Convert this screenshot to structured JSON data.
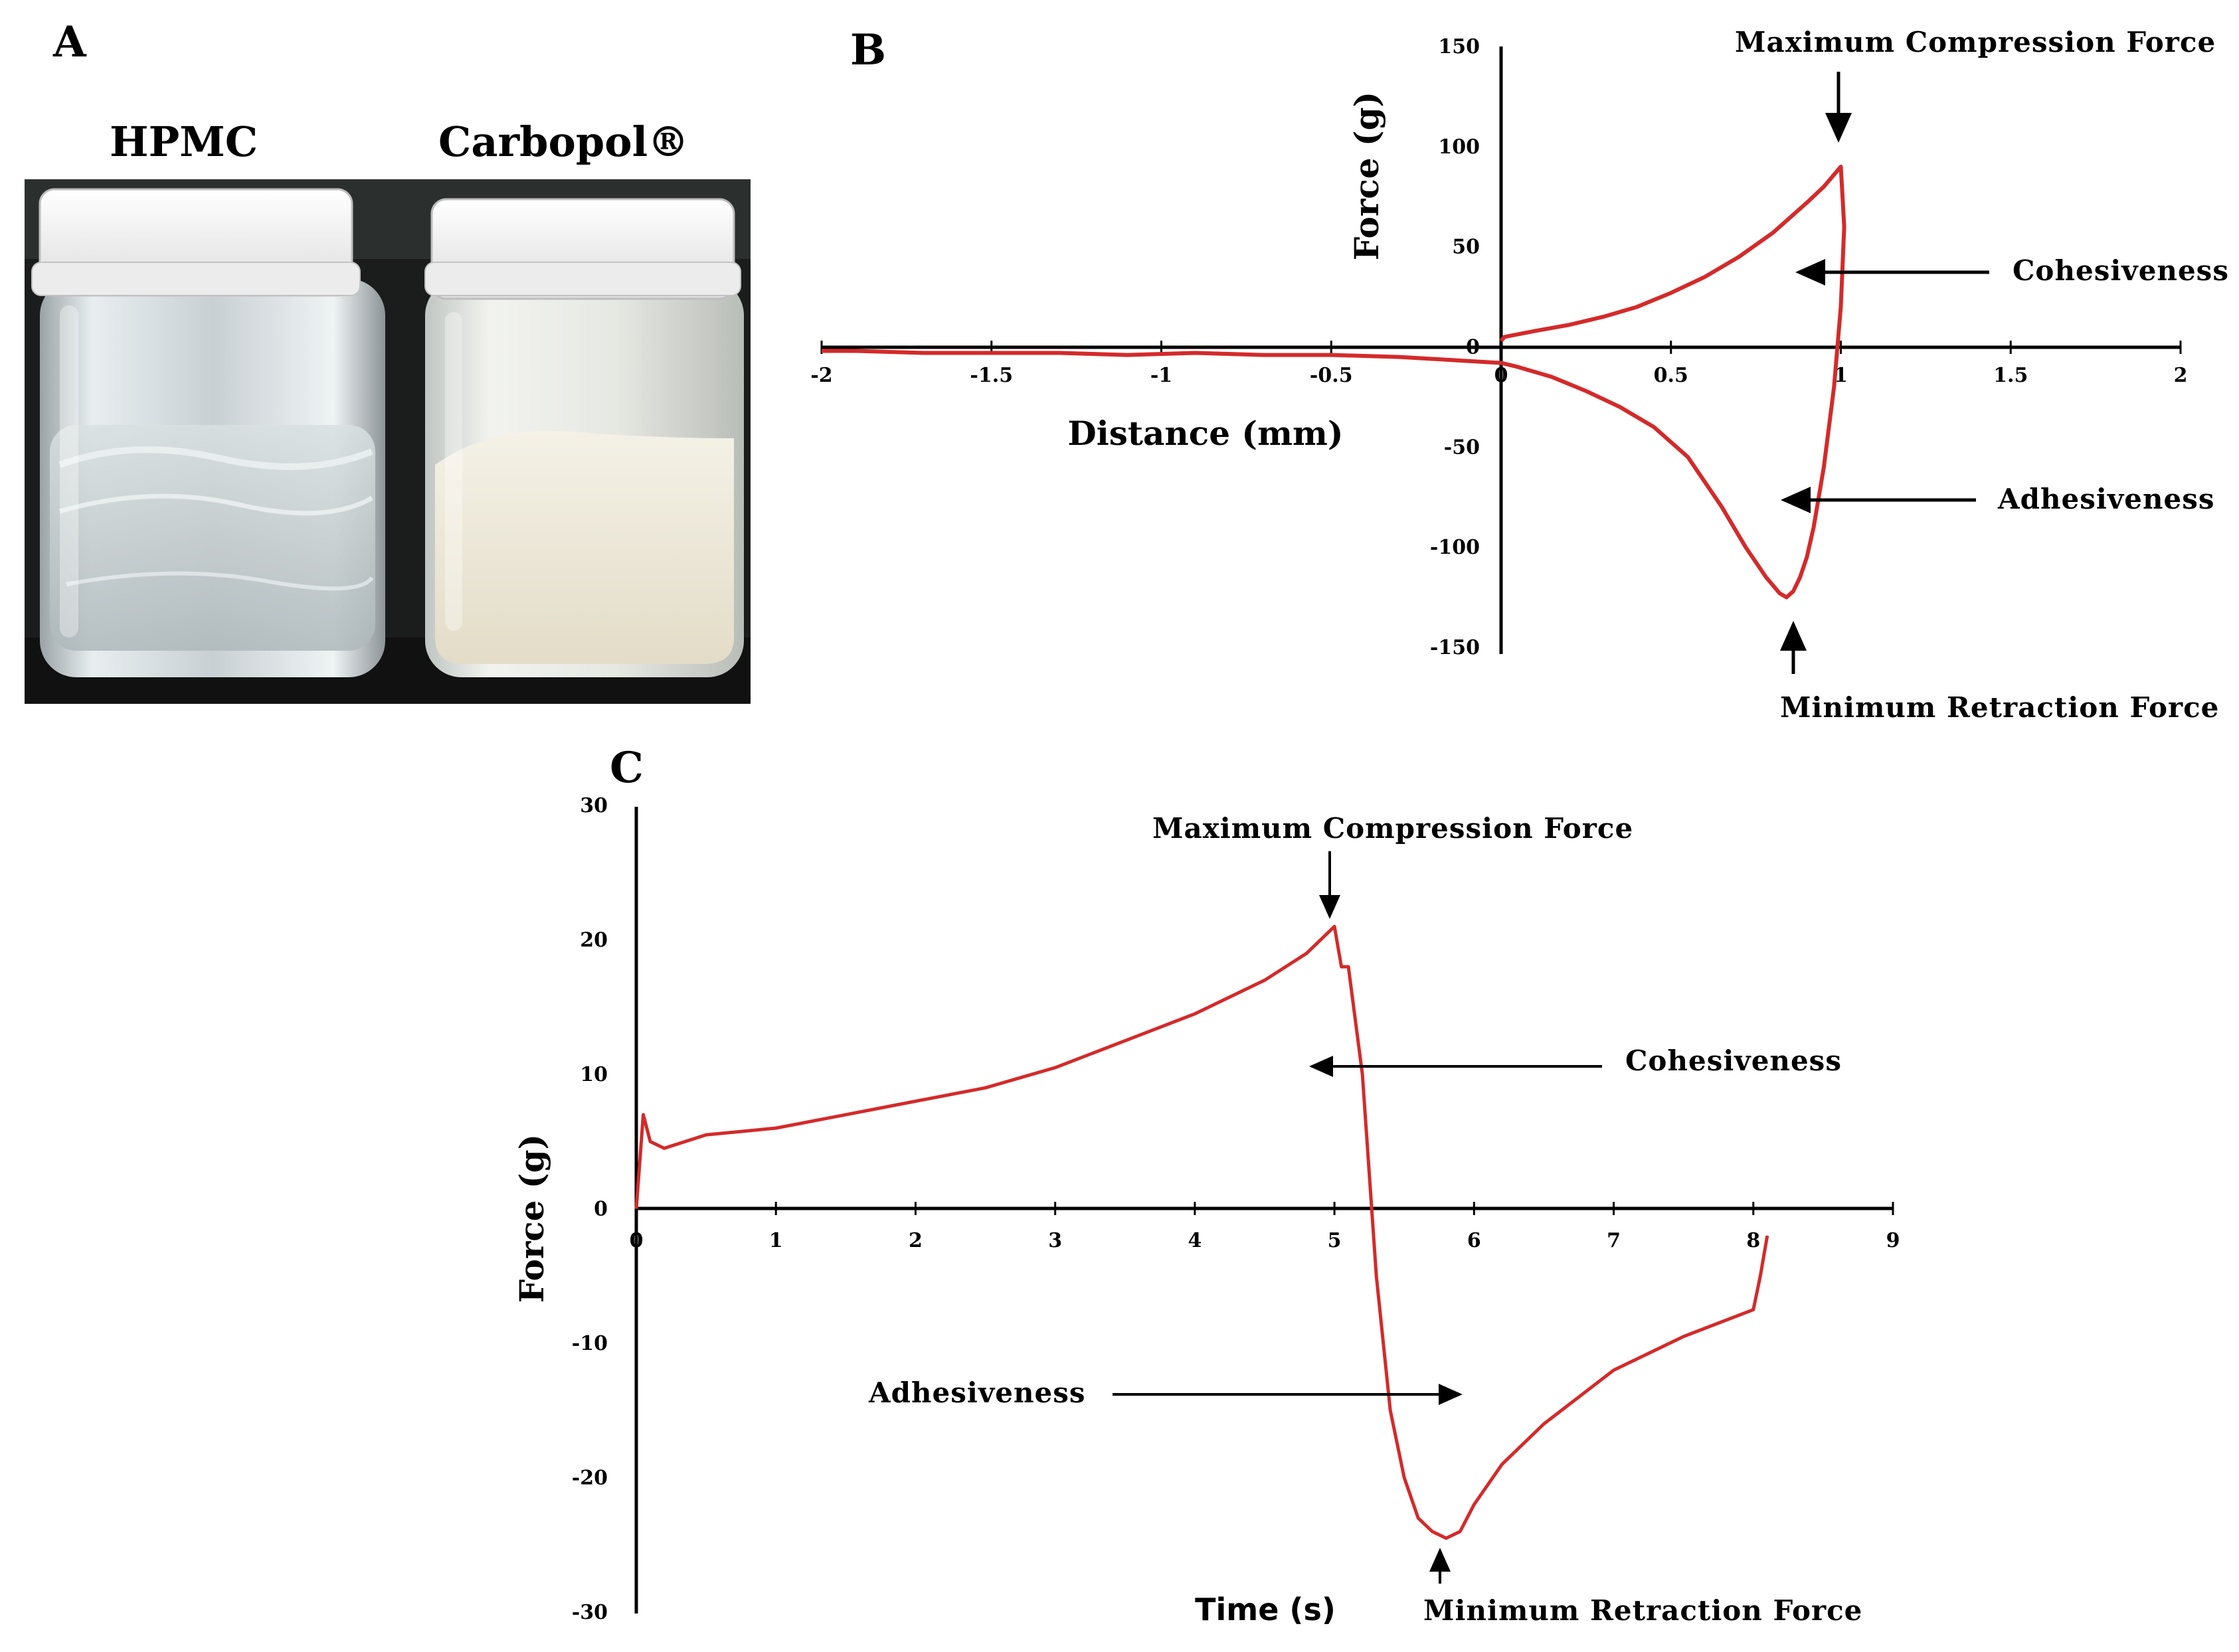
{
  "panel_a": {
    "letter": "A",
    "jars": [
      {
        "label": "HPMC"
      },
      {
        "label": "Carbopol®"
      }
    ]
  },
  "chart_data": [
    {
      "panel": "B",
      "type": "line",
      "xlabel": "Distance (mm)",
      "ylabel": "Force (g)",
      "xlim": [
        -2,
        2
      ],
      "ylim": [
        -150,
        150
      ],
      "xticks": [
        -2,
        -1.5,
        -1,
        -0.5,
        0,
        0.5,
        1,
        1.5,
        2
      ],
      "yticks": [
        150,
        100,
        50,
        0,
        -50,
        -100,
        -150
      ],
      "xtick_labels": [
        "-2",
        "-1.5",
        "-1",
        "-0.5",
        "0",
        "0.5",
        "1",
        "1.5",
        "2"
      ],
      "ytick_labels": [
        "150",
        "100",
        "50",
        "0",
        "-50",
        "-100",
        "-150"
      ],
      "grid": false,
      "line_color": "#d42a2a",
      "series": [
        {
          "x": [
            0,
            0.01,
            0.1,
            0.2,
            0.3,
            0.4,
            0.5,
            0.6,
            0.7,
            0.8,
            0.9,
            0.95,
            1.0,
            1.01,
            1.0,
            0.98,
            0.95,
            0.92,
            0.9,
            0.88,
            0.86,
            0.84,
            0.82,
            0.78,
            0.72,
            0.65,
            0.55,
            0.45,
            0.35,
            0.25,
            0.15,
            0.05,
            0,
            -0.1,
            -0.3,
            -0.5,
            -0.7,
            -0.9,
            -1.1,
            -1.3,
            -1.5,
            -1.7,
            -1.9,
            -2
          ],
          "y": [
            3,
            5,
            8,
            11,
            15,
            20,
            27,
            35,
            45,
            57,
            72,
            80,
            90,
            60,
            20,
            -20,
            -60,
            -90,
            -105,
            -115,
            -122,
            -125,
            -123,
            -115,
            -100,
            -80,
            -55,
            -40,
            -30,
            -22,
            -15,
            -10,
            -8,
            -7,
            -5,
            -4,
            -4,
            -3,
            -4,
            -3,
            -3,
            -3,
            -2,
            -2
          ]
        }
      ],
      "annotations": [
        {
          "text": "Maximum Compression Force",
          "x": 1.0,
          "y": 90
        },
        {
          "text": "Cohesiveness",
          "x": 0.88,
          "y": 37
        },
        {
          "text": "Adhesiveness",
          "x": 0.83,
          "y": -75
        },
        {
          "text": "Minimum Retraction Force",
          "x": 0.85,
          "y": -125
        }
      ]
    },
    {
      "panel": "C",
      "type": "line",
      "xlabel": "Time (s)",
      "ylabel": "Force (g)",
      "xlim": [
        0,
        9
      ],
      "ylim": [
        -30,
        30
      ],
      "xticks": [
        0,
        1,
        2,
        3,
        4,
        5,
        6,
        7,
        8,
        9
      ],
      "yticks": [
        30,
        20,
        10,
        0,
        -10,
        -20,
        -30
      ],
      "xtick_labels": [
        "0",
        "1",
        "2",
        "3",
        "4",
        "5",
        "6",
        "7",
        "8",
        "9"
      ],
      "ytick_labels": [
        "30",
        "20",
        "10",
        "0",
        "-10",
        "-20",
        "-30"
      ],
      "grid": false,
      "line_color": "#d42a2a",
      "series": [
        {
          "x": [
            0,
            0.05,
            0.1,
            0.2,
            0.5,
            1,
            1.5,
            2,
            2.5,
            3,
            3.5,
            4,
            4.5,
            4.8,
            5.0,
            5.05,
            5.1,
            5.2,
            5.3,
            5.4,
            5.5,
            5.6,
            5.7,
            5.8,
            5.9,
            6.0,
            6.2,
            6.5,
            7,
            7.5,
            8,
            8.05,
            8.1
          ],
          "y": [
            0,
            7,
            5,
            4.5,
            5.5,
            6,
            7,
            8,
            9,
            10.5,
            12.5,
            14.5,
            17,
            19,
            21,
            18,
            18,
            10,
            -5,
            -15,
            -20,
            -23,
            -24,
            -24.5,
            -24,
            -22,
            -19,
            -16,
            -12,
            -9.5,
            -7.5,
            -5,
            -2
          ]
        }
      ],
      "annotations": [
        {
          "text": "Maximum Compression Force",
          "x": 5.0,
          "y": 21
        },
        {
          "text": "Cohesiveness",
          "x": 4.8,
          "y": 10.5
        },
        {
          "text": "Adhesiveness",
          "x": 6.0,
          "y": -14
        },
        {
          "text": "Minimum Retraction Force",
          "x": 5.8,
          "y": -24.5
        }
      ]
    }
  ]
}
